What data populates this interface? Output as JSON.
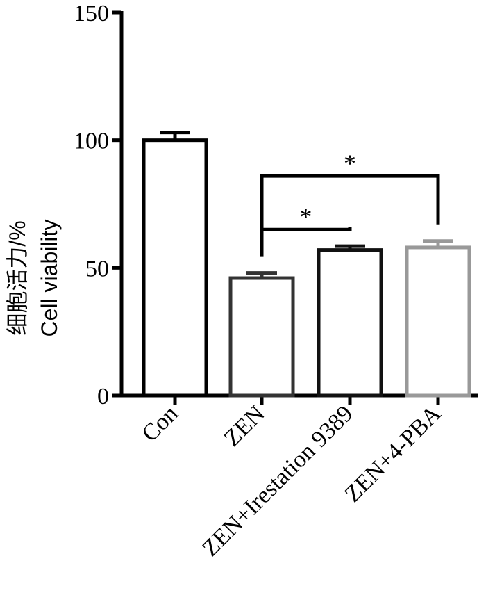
{
  "chart_data": {
    "type": "bar",
    "categories": [
      "Con",
      "ZEN",
      "ZEN+Irestation 9389",
      "ZEN+4-PBA"
    ],
    "values": [
      100,
      46,
      57,
      58
    ],
    "errors": [
      3,
      2,
      1.5,
      2.5
    ],
    "bar_edge_colors": [
      "#000000",
      "#333333",
      "#111111",
      "#999999"
    ],
    "ylabel_lines": [
      "细胞活力/%",
      "Cell viability"
    ],
    "ylim": [
      0,
      150
    ],
    "yticks": [
      "0",
      "50",
      "100",
      "150"
    ],
    "grid": false,
    "significance": [
      {
        "from": 1,
        "to": 2,
        "label": "*"
      },
      {
        "from": 1,
        "to": 3,
        "label": "*"
      }
    ]
  }
}
